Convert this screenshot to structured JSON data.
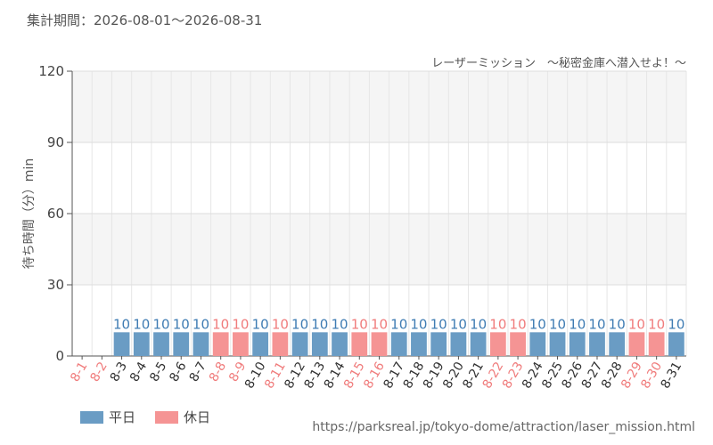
{
  "header": {
    "period": "集計期間：2026-08-01～2026-08-31",
    "subtitle": "レーザーミッション　～秘密金庫へ潜入せよ！～"
  },
  "footer": {
    "url": "https://parksreal.jp/tokyo-dome/attraction/laser_mission.html"
  },
  "colors": {
    "weekday": "#6a9cc4",
    "holiday": "#f59494",
    "weekday_text": "#3f7cb3",
    "holiday_text": "#f07c7c"
  },
  "chart_data": {
    "type": "bar",
    "ylabel": "待ち時間（分）min",
    "ylim": [
      0,
      120
    ],
    "yticks": [
      0,
      30,
      60,
      90,
      120
    ],
    "grid": true,
    "legend_position": "bottom-left",
    "legend": [
      {
        "key": "weekday",
        "label": "平日"
      },
      {
        "key": "holiday",
        "label": "休日"
      }
    ],
    "categories": [
      "8-1",
      "8-2",
      "8-3",
      "8-4",
      "8-5",
      "8-6",
      "8-7",
      "8-8",
      "8-9",
      "8-10",
      "8-11",
      "8-12",
      "8-13",
      "8-14",
      "8-15",
      "8-16",
      "8-17",
      "8-18",
      "8-19",
      "8-20",
      "8-21",
      "8-22",
      "8-23",
      "8-24",
      "8-25",
      "8-26",
      "8-27",
      "8-28",
      "8-29",
      "8-30",
      "8-31"
    ],
    "day_type": [
      "holiday",
      "holiday",
      "weekday",
      "weekday",
      "weekday",
      "weekday",
      "weekday",
      "holiday",
      "holiday",
      "weekday",
      "holiday",
      "weekday",
      "weekday",
      "weekday",
      "holiday",
      "holiday",
      "weekday",
      "weekday",
      "weekday",
      "weekday",
      "weekday",
      "holiday",
      "holiday",
      "weekday",
      "weekday",
      "weekday",
      "weekday",
      "weekday",
      "holiday",
      "holiday",
      "weekday"
    ],
    "values": [
      0,
      0,
      10,
      10,
      10,
      10,
      10,
      10,
      10,
      10,
      10,
      10,
      10,
      10,
      10,
      10,
      10,
      10,
      10,
      10,
      10,
      10,
      10,
      10,
      10,
      10,
      10,
      10,
      10,
      10,
      10
    ]
  }
}
